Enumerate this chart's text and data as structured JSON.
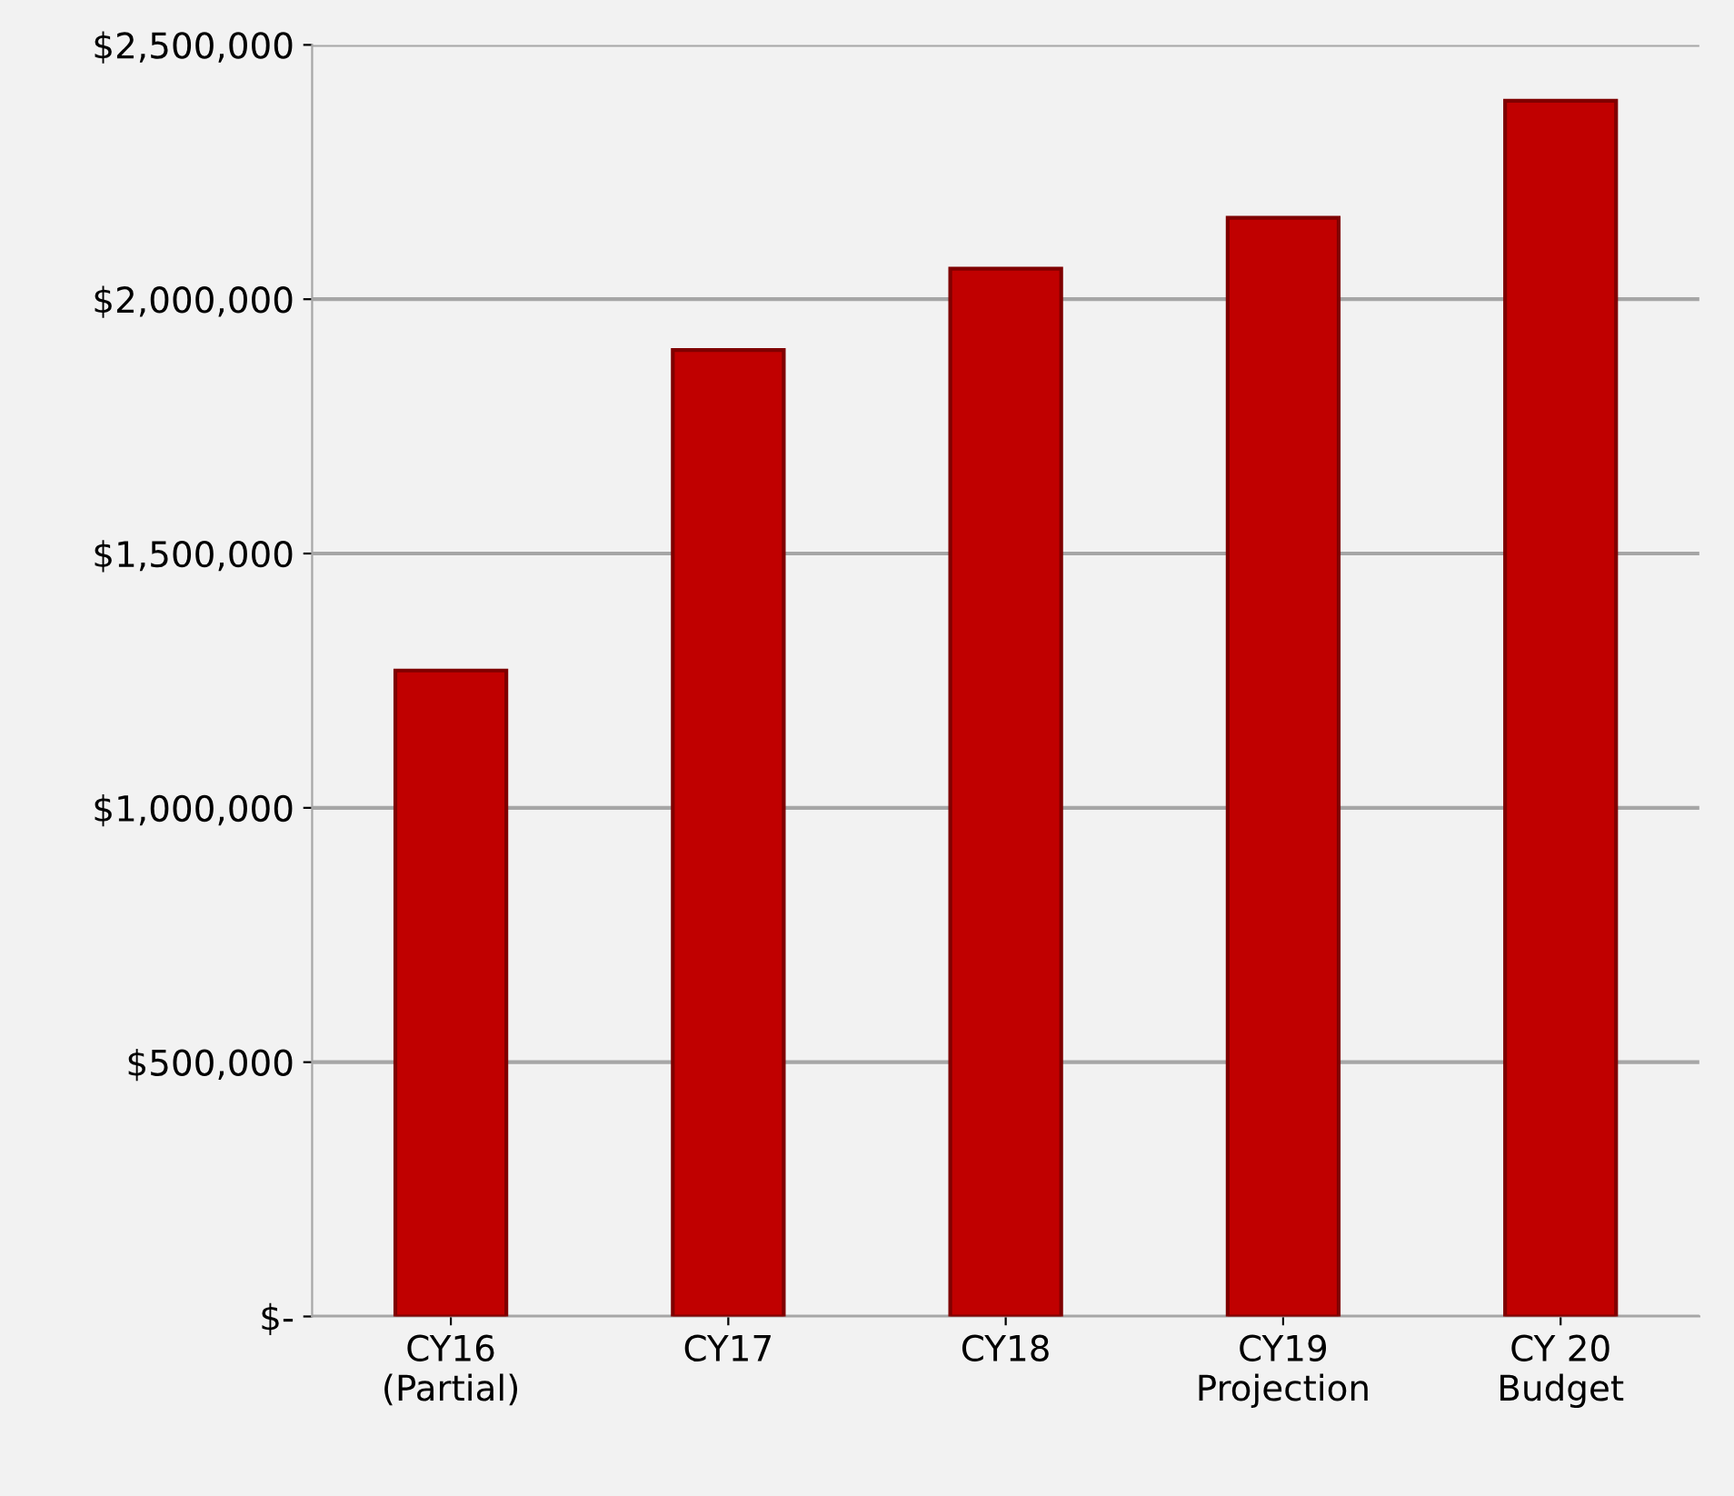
{
  "chart_data": {
    "type": "bar",
    "categories": [
      "CY16\n(Partial)",
      "CY17",
      "CY18",
      "CY19\nProjection",
      "CY 20\nBudget"
    ],
    "values": [
      1270000,
      1900000,
      2060000,
      2160000,
      2390000
    ],
    "color": "#c00000",
    "ylim": [
      0,
      2500000
    ],
    "yticks": [
      {
        "value": 0,
        "label": "$-"
      },
      {
        "value": 500000,
        "label": "$500,000"
      },
      {
        "value": 1000000,
        "label": "$1,000,000"
      },
      {
        "value": 1500000,
        "label": "$1,500,000"
      },
      {
        "value": 2000000,
        "label": "$2,000,000"
      },
      {
        "value": 2500000,
        "label": "$2,500,000"
      }
    ],
    "grid": "y",
    "legend": false
  }
}
